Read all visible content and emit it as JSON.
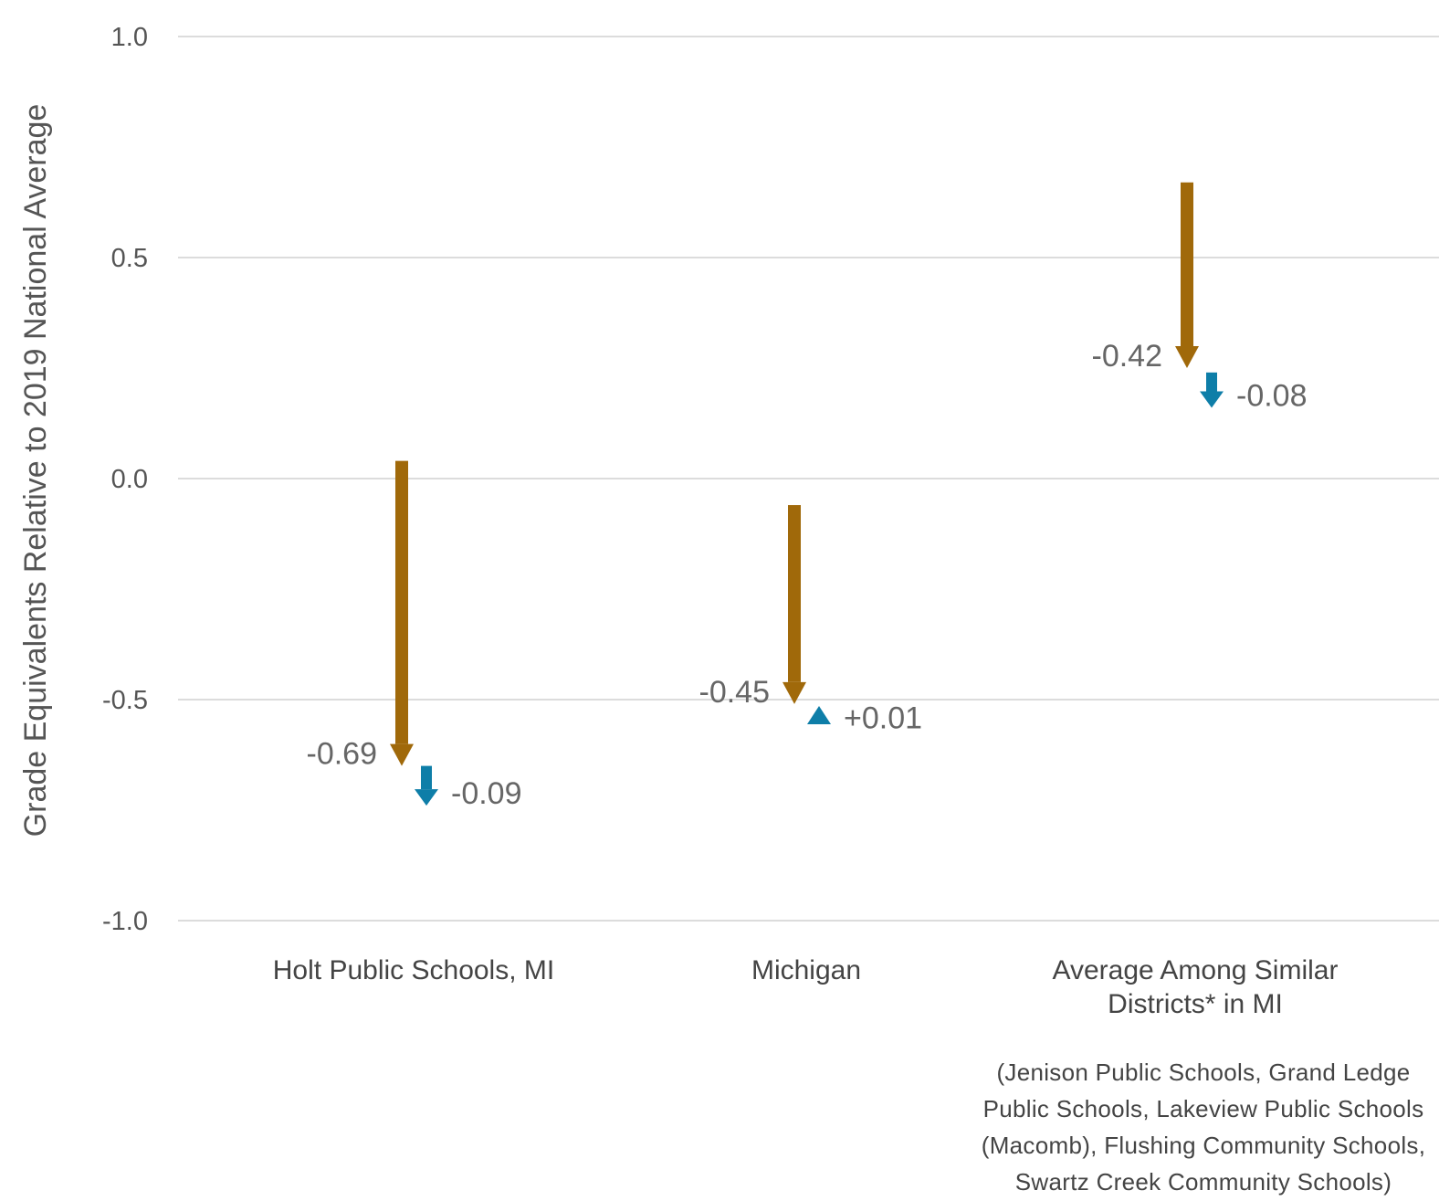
{
  "chart_data": {
    "type": "arrow",
    "ylabel": "Grade Equivalents Relative to 2019 National Average",
    "ylim": [
      -1.0,
      1.0
    ],
    "yticks": [
      "1.0",
      "0.5",
      "0.0",
      "-0.5",
      "-1.0"
    ],
    "grid": true,
    "categories": [
      {
        "label_lines": [
          "Holt Public Schools, MI"
        ]
      },
      {
        "label_lines": [
          "Michigan"
        ]
      },
      {
        "label_lines": [
          "Average Among Similar",
          "Districts* in MI"
        ]
      }
    ],
    "note_lines": [
      "(Jenison Public Schools, Grand Ledge",
      "Public Schools, Lakeview Public Schools",
      "(Macomb), Flushing Community Schools,",
      "Swartz Creek Community Schools)"
    ],
    "series": [
      {
        "color": "#a0690a",
        "segments": [
          {
            "from": 0.04,
            "to": -0.65,
            "label": "-0.69"
          },
          {
            "from": -0.06,
            "to": -0.51,
            "label": "-0.45"
          },
          {
            "from": 0.67,
            "to": 0.25,
            "label": "-0.42"
          }
        ]
      },
      {
        "color": "#0e7ea8",
        "segments": [
          {
            "from": -0.65,
            "to": -0.74,
            "label": "-0.09"
          },
          {
            "from": -0.54,
            "to": -0.53,
            "label": "+0.01"
          },
          {
            "from": 0.24,
            "to": 0.16,
            "label": "-0.08"
          }
        ]
      }
    ]
  }
}
